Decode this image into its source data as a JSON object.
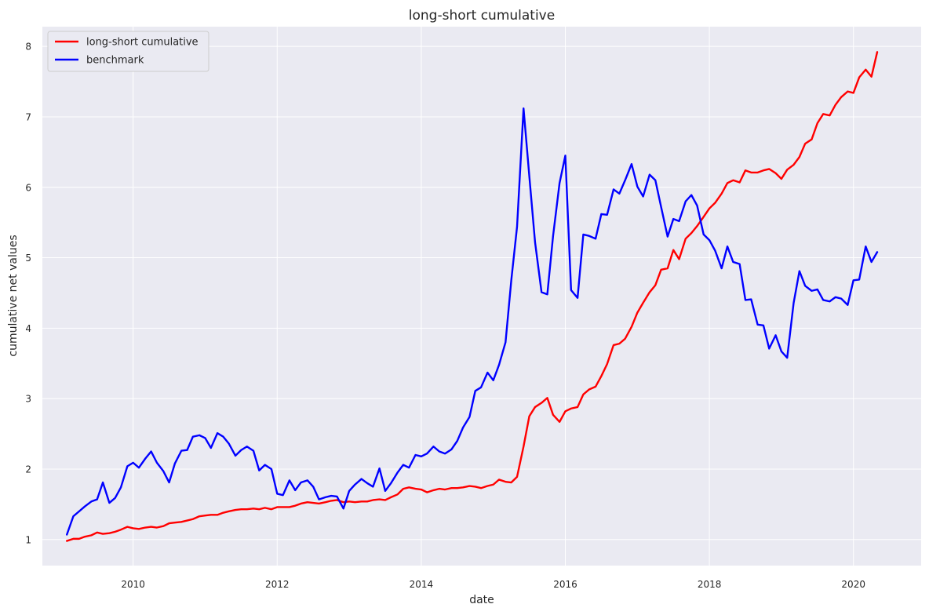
{
  "chart_data": {
    "type": "line",
    "title": "long-short cumulative",
    "xlabel": "date",
    "ylabel": "cumulative net values",
    "xlim": [
      2008.74,
      2020.94
    ],
    "ylim": [
      0.63,
      8.28
    ],
    "x_ticks": [
      {
        "value": 2010,
        "label": "2010"
      },
      {
        "value": 2012,
        "label": "2012"
      },
      {
        "value": 2014,
        "label": "2014"
      },
      {
        "value": 2016,
        "label": "2016"
      },
      {
        "value": 2018,
        "label": "2018"
      },
      {
        "value": 2020,
        "label": "2020"
      }
    ],
    "y_ticks": [
      {
        "value": 1,
        "label": "1"
      },
      {
        "value": 2,
        "label": "2"
      },
      {
        "value": 3,
        "label": "3"
      },
      {
        "value": 4,
        "label": "4"
      },
      {
        "value": 5,
        "label": "5"
      },
      {
        "value": 6,
        "label": "6"
      },
      {
        "value": 7,
        "label": "7"
      },
      {
        "value": 8,
        "label": "8"
      }
    ],
    "grid": true,
    "legend_position": "top-left",
    "background_color": "#eaeaf2",
    "series": [
      {
        "name": "long-short cumulative",
        "color": "#ff0000",
        "points": [
          [
            2009.08,
            0.98
          ],
          [
            2009.17,
            1.01
          ],
          [
            2009.25,
            1.01
          ],
          [
            2009.33,
            1.04
          ],
          [
            2009.42,
            1.06
          ],
          [
            2009.5,
            1.1
          ],
          [
            2009.58,
            1.08
          ],
          [
            2009.67,
            1.09
          ],
          [
            2009.75,
            1.11
          ],
          [
            2009.83,
            1.14
          ],
          [
            2009.92,
            1.18
          ],
          [
            2010.0,
            1.16
          ],
          [
            2010.08,
            1.15
          ],
          [
            2010.17,
            1.17
          ],
          [
            2010.25,
            1.18
          ],
          [
            2010.33,
            1.17
          ],
          [
            2010.42,
            1.19
          ],
          [
            2010.5,
            1.23
          ],
          [
            2010.58,
            1.24
          ],
          [
            2010.67,
            1.25
          ],
          [
            2010.75,
            1.27
          ],
          [
            2010.83,
            1.29
          ],
          [
            2010.92,
            1.33
          ],
          [
            2011.0,
            1.34
          ],
          [
            2011.08,
            1.35
          ],
          [
            2011.17,
            1.35
          ],
          [
            2011.25,
            1.38
          ],
          [
            2011.33,
            1.4
          ],
          [
            2011.42,
            1.42
          ],
          [
            2011.5,
            1.43
          ],
          [
            2011.58,
            1.43
          ],
          [
            2011.67,
            1.44
          ],
          [
            2011.75,
            1.43
          ],
          [
            2011.83,
            1.45
          ],
          [
            2011.92,
            1.43
          ],
          [
            2012.0,
            1.46
          ],
          [
            2012.08,
            1.46
          ],
          [
            2012.17,
            1.46
          ],
          [
            2012.25,
            1.48
          ],
          [
            2012.33,
            1.51
          ],
          [
            2012.42,
            1.53
          ],
          [
            2012.5,
            1.52
          ],
          [
            2012.58,
            1.51
          ],
          [
            2012.67,
            1.53
          ],
          [
            2012.75,
            1.55
          ],
          [
            2012.83,
            1.56
          ],
          [
            2012.92,
            1.53
          ],
          [
            2013.0,
            1.54
          ],
          [
            2013.08,
            1.53
          ],
          [
            2013.17,
            1.54
          ],
          [
            2013.25,
            1.54
          ],
          [
            2013.33,
            1.56
          ],
          [
            2013.42,
            1.57
          ],
          [
            2013.5,
            1.56
          ],
          [
            2013.58,
            1.6
          ],
          [
            2013.67,
            1.64
          ],
          [
            2013.75,
            1.72
          ],
          [
            2013.83,
            1.74
          ],
          [
            2013.92,
            1.72
          ],
          [
            2014.0,
            1.71
          ],
          [
            2014.08,
            1.67
          ],
          [
            2014.17,
            1.7
          ],
          [
            2014.25,
            1.72
          ],
          [
            2014.33,
            1.71
          ],
          [
            2014.42,
            1.73
          ],
          [
            2014.5,
            1.73
          ],
          [
            2014.58,
            1.74
          ],
          [
            2014.67,
            1.76
          ],
          [
            2014.75,
            1.75
          ],
          [
            2014.83,
            1.73
          ],
          [
            2014.92,
            1.76
          ],
          [
            2015.0,
            1.78
          ],
          [
            2015.08,
            1.85
          ],
          [
            2015.17,
            1.82
          ],
          [
            2015.25,
            1.81
          ],
          [
            2015.33,
            1.89
          ],
          [
            2015.42,
            2.32
          ],
          [
            2015.5,
            2.75
          ],
          [
            2015.58,
            2.88
          ],
          [
            2015.67,
            2.94
          ],
          [
            2015.75,
            3.01
          ],
          [
            2015.83,
            2.77
          ],
          [
            2015.92,
            2.67
          ],
          [
            2016.0,
            2.82
          ],
          [
            2016.08,
            2.86
          ],
          [
            2016.17,
            2.88
          ],
          [
            2016.25,
            3.06
          ],
          [
            2016.33,
            3.13
          ],
          [
            2016.42,
            3.17
          ],
          [
            2016.5,
            3.32
          ],
          [
            2016.58,
            3.49
          ],
          [
            2016.67,
            3.76
          ],
          [
            2016.75,
            3.78
          ],
          [
            2016.83,
            3.85
          ],
          [
            2016.92,
            4.02
          ],
          [
            2017.0,
            4.22
          ],
          [
            2017.08,
            4.36
          ],
          [
            2017.17,
            4.51
          ],
          [
            2017.25,
            4.61
          ],
          [
            2017.33,
            4.83
          ],
          [
            2017.42,
            4.85
          ],
          [
            2017.5,
            5.11
          ],
          [
            2017.58,
            4.98
          ],
          [
            2017.67,
            5.27
          ],
          [
            2017.75,
            5.35
          ],
          [
            2017.83,
            5.45
          ],
          [
            2017.92,
            5.58
          ],
          [
            2018.0,
            5.7
          ],
          [
            2018.08,
            5.78
          ],
          [
            2018.17,
            5.91
          ],
          [
            2018.25,
            6.06
          ],
          [
            2018.33,
            6.1
          ],
          [
            2018.42,
            6.07
          ],
          [
            2018.5,
            6.24
          ],
          [
            2018.58,
            6.21
          ],
          [
            2018.67,
            6.21
          ],
          [
            2018.75,
            6.24
          ],
          [
            2018.83,
            6.26
          ],
          [
            2018.92,
            6.2
          ],
          [
            2019.0,
            6.12
          ],
          [
            2019.08,
            6.25
          ],
          [
            2019.17,
            6.32
          ],
          [
            2019.25,
            6.43
          ],
          [
            2019.33,
            6.62
          ],
          [
            2019.42,
            6.68
          ],
          [
            2019.5,
            6.91
          ],
          [
            2019.58,
            7.04
          ],
          [
            2019.67,
            7.02
          ],
          [
            2019.75,
            7.17
          ],
          [
            2019.83,
            7.28
          ],
          [
            2019.92,
            7.36
          ],
          [
            2020.0,
            7.34
          ],
          [
            2020.08,
            7.56
          ],
          [
            2020.17,
            7.67
          ],
          [
            2020.25,
            7.57
          ],
          [
            2020.33,
            7.92
          ]
        ]
      },
      {
        "name": "benchmark",
        "color": "#0000ff",
        "points": [
          [
            2009.08,
            1.07
          ],
          [
            2009.17,
            1.33
          ],
          [
            2009.25,
            1.4
          ],
          [
            2009.33,
            1.47
          ],
          [
            2009.42,
            1.54
          ],
          [
            2009.5,
            1.57
          ],
          [
            2009.58,
            1.81
          ],
          [
            2009.67,
            1.52
          ],
          [
            2009.75,
            1.59
          ],
          [
            2009.83,
            1.74
          ],
          [
            2009.92,
            2.04
          ],
          [
            2010.0,
            2.09
          ],
          [
            2010.08,
            2.02
          ],
          [
            2010.17,
            2.15
          ],
          [
            2010.25,
            2.25
          ],
          [
            2010.33,
            2.09
          ],
          [
            2010.42,
            1.97
          ],
          [
            2010.5,
            1.81
          ],
          [
            2010.58,
            2.08
          ],
          [
            2010.67,
            2.26
          ],
          [
            2010.75,
            2.27
          ],
          [
            2010.83,
            2.46
          ],
          [
            2010.92,
            2.48
          ],
          [
            2011.0,
            2.44
          ],
          [
            2011.08,
            2.3
          ],
          [
            2011.17,
            2.51
          ],
          [
            2011.25,
            2.46
          ],
          [
            2011.33,
            2.36
          ],
          [
            2011.42,
            2.19
          ],
          [
            2011.5,
            2.27
          ],
          [
            2011.58,
            2.32
          ],
          [
            2011.67,
            2.26
          ],
          [
            2011.75,
            1.98
          ],
          [
            2011.83,
            2.06
          ],
          [
            2011.92,
            2.0
          ],
          [
            2012.0,
            1.65
          ],
          [
            2012.08,
            1.63
          ],
          [
            2012.17,
            1.84
          ],
          [
            2012.25,
            1.7
          ],
          [
            2012.33,
            1.81
          ],
          [
            2012.42,
            1.84
          ],
          [
            2012.5,
            1.75
          ],
          [
            2012.58,
            1.57
          ],
          [
            2012.67,
            1.6
          ],
          [
            2012.75,
            1.62
          ],
          [
            2012.83,
            1.61
          ],
          [
            2012.92,
            1.44
          ],
          [
            2013.0,
            1.69
          ],
          [
            2013.08,
            1.78
          ],
          [
            2013.17,
            1.86
          ],
          [
            2013.25,
            1.8
          ],
          [
            2013.33,
            1.75
          ],
          [
            2013.42,
            2.01
          ],
          [
            2013.5,
            1.69
          ],
          [
            2013.58,
            1.8
          ],
          [
            2013.67,
            1.95
          ],
          [
            2013.75,
            2.06
          ],
          [
            2013.83,
            2.02
          ],
          [
            2013.92,
            2.2
          ],
          [
            2014.0,
            2.18
          ],
          [
            2014.08,
            2.22
          ],
          [
            2014.17,
            2.32
          ],
          [
            2014.25,
            2.25
          ],
          [
            2014.33,
            2.22
          ],
          [
            2014.42,
            2.28
          ],
          [
            2014.5,
            2.4
          ],
          [
            2014.58,
            2.59
          ],
          [
            2014.67,
            2.74
          ],
          [
            2014.75,
            3.11
          ],
          [
            2014.83,
            3.16
          ],
          [
            2014.92,
            3.37
          ],
          [
            2015.0,
            3.26
          ],
          [
            2015.08,
            3.48
          ],
          [
            2015.17,
            3.8
          ],
          [
            2015.25,
            4.68
          ],
          [
            2015.33,
            5.44
          ],
          [
            2015.42,
            7.12
          ],
          [
            2015.5,
            6.16
          ],
          [
            2015.58,
            5.22
          ],
          [
            2015.67,
            4.51
          ],
          [
            2015.75,
            4.48
          ],
          [
            2015.83,
            5.31
          ],
          [
            2015.92,
            6.06
          ],
          [
            2016.0,
            6.45
          ],
          [
            2016.08,
            4.54
          ],
          [
            2016.17,
            4.43
          ],
          [
            2016.25,
            5.33
          ],
          [
            2016.33,
            5.31
          ],
          [
            2016.42,
            5.27
          ],
          [
            2016.5,
            5.62
          ],
          [
            2016.58,
            5.61
          ],
          [
            2016.67,
            5.97
          ],
          [
            2016.75,
            5.91
          ],
          [
            2016.83,
            6.1
          ],
          [
            2016.92,
            6.33
          ],
          [
            2017.0,
            6.01
          ],
          [
            2017.08,
            5.87
          ],
          [
            2017.17,
            6.18
          ],
          [
            2017.25,
            6.1
          ],
          [
            2017.33,
            5.72
          ],
          [
            2017.42,
            5.3
          ],
          [
            2017.5,
            5.55
          ],
          [
            2017.58,
            5.52
          ],
          [
            2017.67,
            5.8
          ],
          [
            2017.75,
            5.89
          ],
          [
            2017.83,
            5.74
          ],
          [
            2017.92,
            5.33
          ],
          [
            2018.0,
            5.25
          ],
          [
            2018.08,
            5.1
          ],
          [
            2018.17,
            4.85
          ],
          [
            2018.25,
            5.16
          ],
          [
            2018.33,
            4.94
          ],
          [
            2018.42,
            4.91
          ],
          [
            2018.5,
            4.4
          ],
          [
            2018.58,
            4.41
          ],
          [
            2018.67,
            4.05
          ],
          [
            2018.75,
            4.04
          ],
          [
            2018.83,
            3.71
          ],
          [
            2018.92,
            3.9
          ],
          [
            2019.0,
            3.67
          ],
          [
            2019.08,
            3.58
          ],
          [
            2019.17,
            4.36
          ],
          [
            2019.25,
            4.81
          ],
          [
            2019.33,
            4.6
          ],
          [
            2019.42,
            4.53
          ],
          [
            2019.5,
            4.55
          ],
          [
            2019.58,
            4.4
          ],
          [
            2019.67,
            4.38
          ],
          [
            2019.75,
            4.44
          ],
          [
            2019.83,
            4.42
          ],
          [
            2019.92,
            4.33
          ],
          [
            2020.0,
            4.68
          ],
          [
            2020.08,
            4.69
          ],
          [
            2020.17,
            5.16
          ],
          [
            2020.25,
            4.94
          ],
          [
            2020.33,
            5.08
          ]
        ]
      }
    ]
  }
}
